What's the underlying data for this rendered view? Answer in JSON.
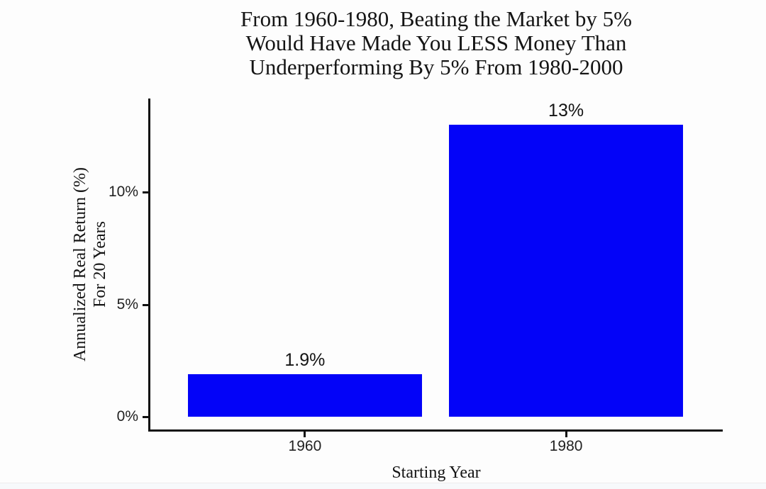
{
  "page": {
    "background": "#fdfdfd",
    "text_color": "#141414"
  },
  "chart_data": {
    "type": "bar",
    "title_lines": [
      "From 1960-1980, Beating the Market by 5%",
      "Would Have Made You LESS Money Than",
      "Underperforming By 5% From 1980-2000"
    ],
    "categories": [
      "1960",
      "1980"
    ],
    "values": [
      1.9,
      13
    ],
    "value_labels": [
      "1.9%",
      "13%"
    ],
    "xlabel": "Starting Year",
    "ylabel_lines": [
      "Annualized Real Return (%)",
      "For 20 Years"
    ],
    "yticks": [
      {
        "value": 0,
        "label": "0%"
      },
      {
        "value": 5,
        "label": "5%"
      },
      {
        "value": 10,
        "label": "10%"
      }
    ],
    "ylim": [
      0,
      14.2
    ],
    "bar_color": "#0303f8",
    "axis_color": "#111111",
    "grid": false,
    "legend": false
  }
}
